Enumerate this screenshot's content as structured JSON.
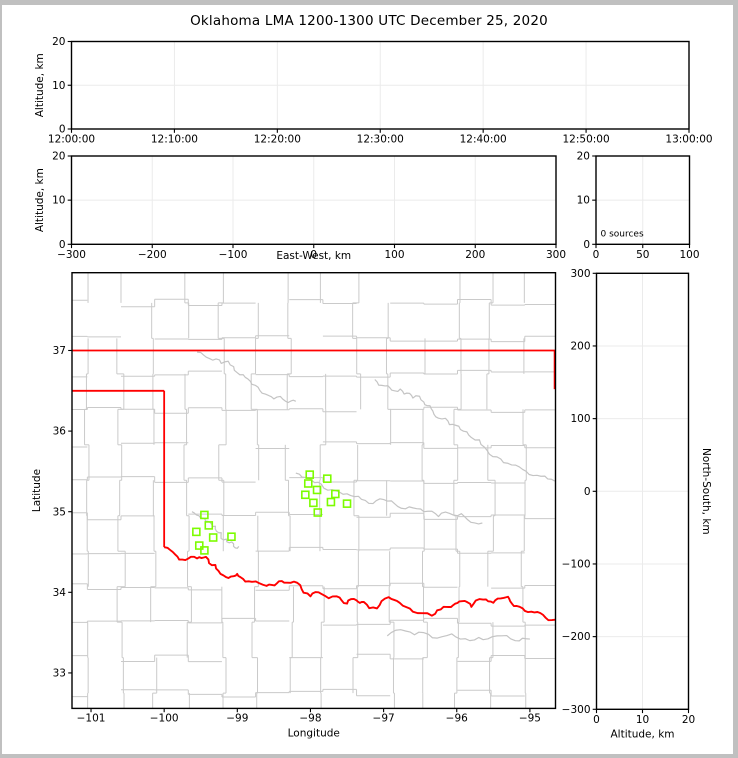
{
  "title": "Oklahoma LMA 1200-1300 UTC December 25, 2020",
  "colors": {
    "background": "#ffffff",
    "window_frame": "#c0c0c0",
    "spine": "#000000",
    "grid": "#ebebeb",
    "county_line": "#cacaca",
    "river_line": "#c4c4c4",
    "state_border": "#ff0000",
    "station_marker": "#7cfc00"
  },
  "chart_data": [
    {
      "id": "time_altitude",
      "type": "scatter",
      "description": "VHF source altitude vs time (empty - no sources)",
      "xlabel": "",
      "ylabel": "Altitude, km",
      "xlim": [
        0,
        3600
      ],
      "x_ticks": [
        0,
        600,
        1200,
        1800,
        2400,
        3000,
        3600
      ],
      "x_tick_labels": [
        "12:00:00",
        "12:10:00",
        "12:20:00",
        "12:30:00",
        "12:40:00",
        "12:50:00",
        "13:00:00"
      ],
      "ylim": [
        0,
        20
      ],
      "y_ticks": [
        0,
        10,
        20
      ],
      "grid": true,
      "points": []
    },
    {
      "id": "eastwest_altitude",
      "type": "scatter",
      "description": "Altitude vs east-west distance (empty - no sources)",
      "xlabel": "East-West, km",
      "ylabel": "Altitude, km",
      "xlim": [
        -300,
        300
      ],
      "x_ticks": [
        -300,
        -200,
        -100,
        0,
        100,
        200,
        300
      ],
      "ylim": [
        0,
        20
      ],
      "y_ticks": [
        0,
        10,
        20
      ],
      "grid": true,
      "points": []
    },
    {
      "id": "altitude_histogram",
      "type": "line",
      "description": "Source count per altitude (empty)",
      "xlabel": "",
      "ylabel": "",
      "xlim": [
        0,
        100
      ],
      "x_ticks": [
        0,
        50,
        100
      ],
      "ylim": [
        0,
        20
      ],
      "y_ticks": [
        0,
        10,
        20
      ],
      "annotation": "0 sources",
      "grid": true,
      "points": []
    },
    {
      "id": "plan_view_map",
      "type": "scatter",
      "description": "Plan view map of Oklahoma with LMA station locations",
      "xlabel": "Longitude",
      "ylabel": "Latitude",
      "xlim": [
        -101.26,
        -94.65
      ],
      "x_ticks": [
        -101,
        -100,
        -99,
        -98,
        -97,
        -96,
        -95
      ],
      "ylim": [
        32.56,
        37.965
      ],
      "y_ticks": [
        33,
        34,
        35,
        36,
        37
      ],
      "marker": {
        "shape": "square",
        "size": 7,
        "color": "#7cfc00",
        "filled": false
      },
      "stations": [
        [
          -99.45,
          34.96
        ],
        [
          -99.39,
          34.83
        ],
        [
          -99.56,
          34.75
        ],
        [
          -99.33,
          34.68
        ],
        [
          -99.08,
          34.69
        ],
        [
          -99.52,
          34.58
        ],
        [
          -99.45,
          34.52
        ],
        [
          -98.01,
          35.46
        ],
        [
          -97.77,
          35.41
        ],
        [
          -98.03,
          35.35
        ],
        [
          -97.91,
          35.27
        ],
        [
          -98.07,
          35.21
        ],
        [
          -97.66,
          35.22
        ],
        [
          -97.96,
          35.11
        ],
        [
          -97.72,
          35.12
        ],
        [
          -97.5,
          35.1
        ],
        [
          -97.9,
          34.99
        ]
      ],
      "state_border": {
        "north": [
          [
            -101.26,
            37.0
          ],
          [
            -94.65,
            37.0
          ]
        ],
        "panhandle_south": [
          [
            -101.26,
            36.5
          ],
          [
            -100.0,
            36.5
          ]
        ],
        "west": [
          [
            -100.0,
            36.5
          ],
          [
            -100.0,
            34.56
          ]
        ],
        "east": [
          [
            -94.662,
            37.0
          ],
          [
            -94.662,
            36.52
          ]
        ],
        "red_river_south": [
          [
            -100.0,
            34.56
          ],
          [
            -99.85,
            34.47
          ],
          [
            -99.71,
            34.4
          ],
          [
            -99.55,
            34.42
          ],
          [
            -99.43,
            34.44
          ],
          [
            -99.3,
            34.34
          ],
          [
            -99.19,
            34.21
          ],
          [
            -99.05,
            34.2
          ],
          [
            -98.96,
            34.19
          ],
          [
            -98.8,
            34.13
          ],
          [
            -98.6,
            34.08
          ],
          [
            -98.46,
            34.11
          ],
          [
            -98.32,
            34.12
          ],
          [
            -98.14,
            34.09
          ],
          [
            -98.0,
            33.95
          ],
          [
            -97.85,
            33.98
          ],
          [
            -97.64,
            33.95
          ],
          [
            -97.5,
            33.86
          ],
          [
            -97.37,
            33.9
          ],
          [
            -97.27,
            33.88
          ],
          [
            -97.09,
            33.8
          ],
          [
            -96.93,
            33.94
          ],
          [
            -96.78,
            33.87
          ],
          [
            -96.6,
            33.76
          ],
          [
            -96.34,
            33.71
          ],
          [
            -96.18,
            33.82
          ],
          [
            -96.05,
            33.84
          ],
          [
            -95.93,
            33.89
          ],
          [
            -95.8,
            33.82
          ],
          [
            -95.64,
            33.91
          ],
          [
            -95.5,
            33.87
          ],
          [
            -95.36,
            33.93
          ],
          [
            -95.27,
            33.89
          ],
          [
            -95.14,
            33.82
          ],
          [
            -94.98,
            33.76
          ],
          [
            -94.82,
            33.72
          ],
          [
            -94.65,
            33.66
          ]
        ]
      },
      "rivers": [
        {
          "name": "cimarron-river",
          "points": [
            [
              -99.55,
              36.98
            ],
            [
              -99.38,
              36.9
            ],
            [
              -99.22,
              36.84
            ],
            [
              -99.05,
              36.8
            ],
            [
              -98.92,
              36.7
            ],
            [
              -98.8,
              36.58
            ],
            [
              -98.66,
              36.47
            ],
            [
              -98.5,
              36.4
            ],
            [
              -98.34,
              36.37
            ],
            [
              -98.2,
              36.37
            ]
          ]
        },
        {
          "name": "arkansas-river",
          "points": [
            [
              -97.12,
              36.64
            ],
            [
              -96.98,
              36.56
            ],
            [
              -96.85,
              36.5
            ],
            [
              -96.72,
              36.46
            ],
            [
              -96.6,
              36.41
            ],
            [
              -96.45,
              36.36
            ],
            [
              -96.35,
              36.28
            ],
            [
              -96.25,
              36.16
            ],
            [
              -96.1,
              36.08
            ],
            [
              -95.95,
              36.02
            ],
            [
              -95.8,
              35.92
            ],
            [
              -95.62,
              35.8
            ],
            [
              -95.45,
              35.68
            ],
            [
              -95.25,
              35.58
            ],
            [
              -95.05,
              35.5
            ],
            [
              -94.85,
              35.44
            ],
            [
              -94.66,
              35.38
            ]
          ]
        },
        {
          "name": "canadian-river",
          "points": [
            [
              -98.2,
              35.48
            ],
            [
              -98.02,
              35.42
            ],
            [
              -97.85,
              35.34
            ],
            [
              -97.65,
              35.26
            ],
            [
              -97.45,
              35.2
            ],
            [
              -97.25,
              35.14
            ],
            [
              -97.05,
              35.16
            ],
            [
              -96.85,
              35.1
            ],
            [
              -96.65,
              35.06
            ],
            [
              -96.45,
              35.0
            ],
            [
              -96.25,
              34.94
            ],
            [
              -96.05,
              34.96
            ],
            [
              -95.85,
              34.9
            ],
            [
              -95.65,
              34.86
            ]
          ]
        },
        {
          "name": "north-fork-red-river",
          "points": [
            [
              -99.62,
              35.0
            ],
            [
              -99.5,
              34.92
            ],
            [
              -99.4,
              34.88
            ],
            [
              -99.3,
              34.82
            ],
            [
              -99.22,
              34.74
            ],
            [
              -99.15,
              34.66
            ],
            [
              -99.05,
              34.6
            ],
            [
              -98.98,
              34.57
            ]
          ]
        },
        {
          "name": "texas-river",
          "points": [
            [
              -96.95,
              33.46
            ],
            [
              -96.7,
              33.52
            ],
            [
              -96.45,
              33.5
            ],
            [
              -96.2,
              33.45
            ],
            [
              -95.95,
              33.42
            ],
            [
              -95.7,
              33.44
            ],
            [
              -95.45,
              33.46
            ],
            [
              -95.2,
              33.4
            ],
            [
              -95.0,
              33.42
            ]
          ]
        }
      ]
    },
    {
      "id": "altitude_northsouth",
      "type": "scatter",
      "description": "North-south distance vs altitude (empty - no sources)",
      "xlabel": "Altitude, km",
      "ylabel": "North-South, km",
      "xlim": [
        0,
        20
      ],
      "x_ticks": [
        0,
        10,
        20
      ],
      "ylim": [
        -300,
        300
      ],
      "y_ticks": [
        -300,
        -200,
        -100,
        0,
        100,
        200,
        300
      ],
      "grid": true,
      "points": []
    }
  ]
}
